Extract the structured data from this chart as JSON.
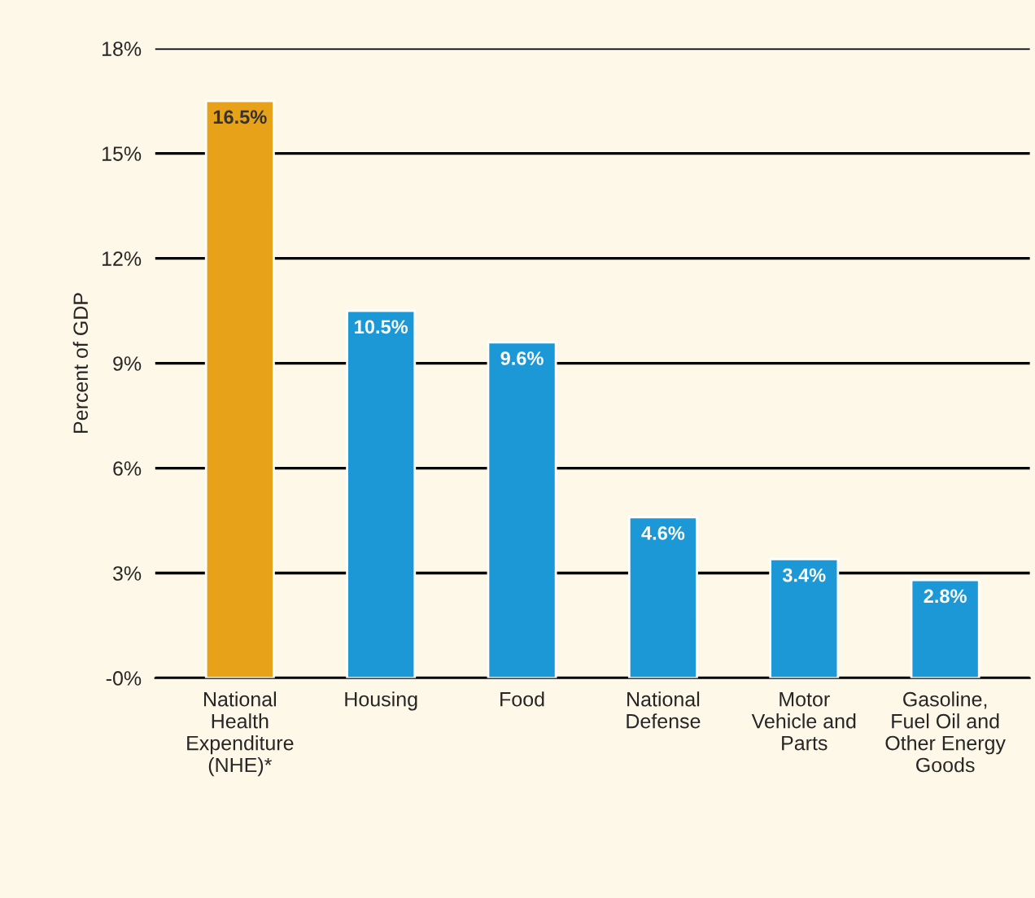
{
  "chart_data": {
    "type": "bar",
    "ylabel": "Percent of GDP",
    "categories": [
      "National\nHealth\nExpenditure\n(NHE)*",
      "Housing",
      "Food",
      "National\nDefense",
      "Motor\nVehicle and\nParts",
      "Gasoline,\nFuel Oil and\nOther Energy\nGoods"
    ],
    "values": [
      16.5,
      10.5,
      9.6,
      4.6,
      3.4,
      2.8
    ],
    "colors": [
      "#e8a219",
      "#1b98d5",
      "#1b98d5",
      "#1b98d5",
      "#1b98d5",
      "#1b98d5"
    ],
    "value_labels": [
      "16.5%",
      "10.5%",
      "9.6%",
      "4.6%",
      "3.4%",
      "2.8%"
    ],
    "ylim": [
      0,
      18
    ],
    "yticks": [
      {
        "value": 0,
        "label": "-0%"
      },
      {
        "value": 3,
        "label": "3%"
      },
      {
        "value": 6,
        "label": "6%"
      },
      {
        "value": 9,
        "label": "9%"
      },
      {
        "value": 12,
        "label": "12%"
      },
      {
        "value": 15,
        "label": "15%"
      },
      {
        "value": 18,
        "label": "18%"
      }
    ],
    "grid": "y"
  }
}
